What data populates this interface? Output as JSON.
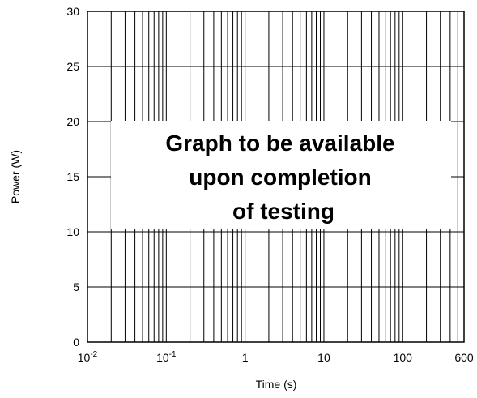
{
  "chart_data": {
    "type": "line",
    "title": "",
    "xlabel": "Time (s)",
    "ylabel": "Power  (W)",
    "x_scale": "log",
    "xlim": [
      0.01,
      600
    ],
    "ylim": [
      0,
      30
    ],
    "x_ticks": [
      {
        "value": 0.01,
        "base": "10",
        "exp": "-2"
      },
      {
        "value": 0.1,
        "base": "10",
        "exp": "-1"
      },
      {
        "value": 1,
        "base": "1",
        "exp": ""
      },
      {
        "value": 10,
        "base": "10",
        "exp": ""
      },
      {
        "value": 100,
        "base": "100",
        "exp": ""
      },
      {
        "value": 600,
        "base": "600",
        "exp": ""
      }
    ],
    "y_ticks": [
      0,
      5,
      10,
      15,
      20,
      25,
      30
    ],
    "grid": true,
    "series": [],
    "annotation": {
      "lines": [
        "Graph to be available",
        "upon completion",
        "of testing"
      ]
    }
  }
}
